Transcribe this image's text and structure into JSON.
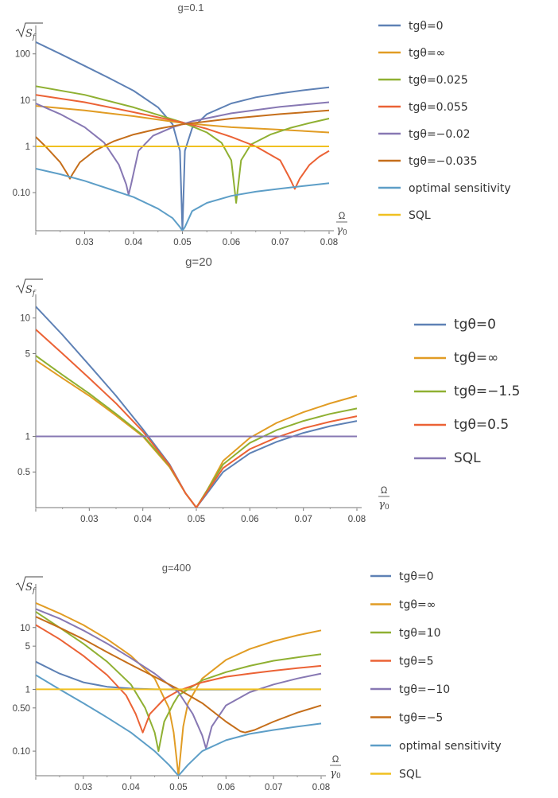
{
  "chart_data": [
    {
      "type": "line",
      "title": "g=0.1",
      "ylabel": "√S_f",
      "xlabel": "Ω / γ0",
      "yscale": "log",
      "xlim": [
        0.02,
        0.08
      ],
      "ylim": [
        0.015,
        300
      ],
      "xticks": [
        "0.03",
        "0.04",
        "0.05",
        "0.06",
        "0.07",
        "0.08"
      ],
      "yticks": [
        "100",
        "10",
        "1",
        "0.10"
      ],
      "legend": "right",
      "series": [
        {
          "name": "tgθ=0",
          "color": "#5e81b5",
          "x": [
            0.02,
            0.025,
            0.03,
            0.035,
            0.04,
            0.045,
            0.048,
            0.0495,
            0.05,
            0.0505,
            0.052,
            0.055,
            0.06,
            0.065,
            0.07,
            0.075,
            0.08
          ],
          "y": [
            180,
            100,
            55,
            30,
            16,
            7,
            3,
            0.8,
            0.015,
            0.8,
            2.5,
            5,
            8.5,
            11.5,
            14,
            16.5,
            19
          ]
        },
        {
          "name": "tgθ=∞",
          "color": "#e19c24",
          "x": [
            0.02,
            0.03,
            0.04,
            0.05,
            0.06,
            0.07,
            0.08
          ],
          "y": [
            7.5,
            6,
            4.5,
            3.2,
            2.6,
            2.3,
            2.0
          ]
        },
        {
          "name": "tgθ=0.025",
          "color": "#8fb032",
          "x": [
            0.02,
            0.03,
            0.04,
            0.05,
            0.055,
            0.058,
            0.06,
            0.061,
            0.062,
            0.064,
            0.068,
            0.072,
            0.076,
            0.08
          ],
          "y": [
            20,
            13,
            7,
            3.3,
            2,
            1.2,
            0.5,
            0.06,
            0.5,
            1.1,
            1.8,
            2.5,
            3.2,
            4
          ]
        },
        {
          "name": "tgθ=0.055",
          "color": "#eb6235",
          "x": [
            0.02,
            0.03,
            0.04,
            0.05,
            0.055,
            0.06,
            0.065,
            0.07,
            0.072,
            0.073,
            0.074,
            0.076,
            0.078,
            0.08
          ],
          "y": [
            13,
            9,
            5.5,
            3.3,
            2.4,
            1.6,
            1.0,
            0.5,
            0.2,
            0.12,
            0.2,
            0.4,
            0.6,
            0.8
          ]
        },
        {
          "name": "tgθ=−0.02",
          "color": "#8778b3",
          "x": [
            0.02,
            0.025,
            0.03,
            0.034,
            0.037,
            0.0385,
            0.039,
            0.0395,
            0.041,
            0.044,
            0.048,
            0.052,
            0.06,
            0.07,
            0.08
          ],
          "y": [
            8.5,
            5,
            2.6,
            1.2,
            0.4,
            0.15,
            0.09,
            0.15,
            0.8,
            1.7,
            2.6,
            3.5,
            5.2,
            7.2,
            9
          ]
        },
        {
          "name": "tgθ=−0.035",
          "color": "#c56e1a",
          "x": [
            0.02,
            0.022,
            0.025,
            0.0265,
            0.027,
            0.0275,
            0.029,
            0.032,
            0.036,
            0.04,
            0.045,
            0.05,
            0.06,
            0.07,
            0.08
          ],
          "y": [
            1.6,
            1.0,
            0.45,
            0.25,
            0.2,
            0.25,
            0.45,
            0.8,
            1.3,
            1.8,
            2.4,
            3.0,
            4.0,
            5.0,
            6
          ]
        },
        {
          "name": "optimal sensitivity",
          "color": "#5d9ec7",
          "x": [
            0.02,
            0.025,
            0.03,
            0.035,
            0.04,
            0.045,
            0.048,
            0.0495,
            0.05,
            0.0505,
            0.052,
            0.055,
            0.06,
            0.065,
            0.07,
            0.075,
            0.08
          ],
          "y": [
            0.33,
            0.25,
            0.18,
            0.12,
            0.08,
            0.045,
            0.028,
            0.018,
            0.015,
            0.018,
            0.04,
            0.06,
            0.085,
            0.105,
            0.122,
            0.14,
            0.16
          ]
        },
        {
          "name": "SQL",
          "color": "#f0c020",
          "x": [
            0.02,
            0.08
          ],
          "y": [
            1,
            1
          ]
        }
      ]
    },
    {
      "type": "line",
      "title": "g=20",
      "ylabel": "√S_f",
      "xlabel": "Ω / γ0",
      "yscale": "log",
      "xlim": [
        0.02,
        0.08
      ],
      "ylim": [
        0.25,
        14
      ],
      "xticks": [
        "0.03",
        "0.04",
        "0.05",
        "0.06",
        "0.07",
        "0.08"
      ],
      "yticks": [
        "10",
        "5",
        "1",
        "0.5"
      ],
      "legend": "right",
      "series": [
        {
          "name": "tgθ=0",
          "color": "#5e81b5",
          "x": [
            0.02,
            0.025,
            0.03,
            0.035,
            0.04,
            0.045,
            0.048,
            0.05,
            0.052,
            0.055,
            0.06,
            0.065,
            0.07,
            0.075,
            0.08
          ],
          "y": [
            12.5,
            7.2,
            4.0,
            2.2,
            1.15,
            0.58,
            0.33,
            0.25,
            0.33,
            0.5,
            0.72,
            0.9,
            1.07,
            1.22,
            1.35
          ]
        },
        {
          "name": "tgθ=∞",
          "color": "#e19c24",
          "x": [
            0.02,
            0.025,
            0.03,
            0.035,
            0.04,
            0.045,
            0.048,
            0.05,
            0.052,
            0.055,
            0.06,
            0.065,
            0.07,
            0.075,
            0.08
          ],
          "y": [
            4.4,
            3.1,
            2.2,
            1.5,
            1.0,
            0.55,
            0.33,
            0.25,
            0.35,
            0.62,
            0.97,
            1.3,
            1.6,
            1.9,
            2.2
          ]
        },
        {
          "name": "tgθ=−1.5",
          "color": "#8fb032",
          "x": [
            0.02,
            0.025,
            0.03,
            0.035,
            0.04,
            0.045,
            0.048,
            0.05,
            0.052,
            0.055,
            0.06,
            0.065,
            0.07,
            0.075,
            0.08
          ],
          "y": [
            4.8,
            3.3,
            2.3,
            1.55,
            1.02,
            0.56,
            0.33,
            0.25,
            0.35,
            0.58,
            0.88,
            1.13,
            1.35,
            1.55,
            1.72
          ]
        },
        {
          "name": "tgθ=0.5",
          "color": "#eb6235",
          "x": [
            0.02,
            0.025,
            0.03,
            0.035,
            0.04,
            0.045,
            0.048,
            0.05,
            0.052,
            0.055,
            0.06,
            0.065,
            0.07,
            0.075,
            0.08
          ],
          "y": [
            8.0,
            5.0,
            3.1,
            1.9,
            1.1,
            0.57,
            0.33,
            0.25,
            0.34,
            0.54,
            0.78,
            0.98,
            1.17,
            1.33,
            1.48
          ]
        },
        {
          "name": "SQL",
          "color": "#8778b3",
          "x": [
            0.02,
            0.08
          ],
          "y": [
            1,
            1
          ]
        }
      ]
    },
    {
      "type": "line",
      "title": "g=400",
      "ylabel": "√S_f",
      "xlabel": "Ω / γ0",
      "yscale": "log",
      "xlim": [
        0.02,
        0.08
      ],
      "ylim": [
        0.04,
        40
      ],
      "xticks": [
        "0.03",
        "0.04",
        "0.05",
        "0.06",
        "0.07",
        "0.08"
      ],
      "yticks": [
        "10",
        "5",
        "1",
        "0.50",
        "0.10"
      ],
      "legend": "right",
      "series": [
        {
          "name": "tgθ=0",
          "color": "#5e81b5",
          "x": [
            0.02,
            0.025,
            0.03,
            0.035,
            0.04,
            0.045,
            0.05,
            0.06,
            0.07,
            0.08
          ],
          "y": [
            2.8,
            1.8,
            1.3,
            1.1,
            1.03,
            1.0,
            0.99,
            0.99,
            1.0,
            1.0
          ]
        },
        {
          "name": "tgθ=∞",
          "color": "#e19c24",
          "x": [
            0.02,
            0.025,
            0.03,
            0.035,
            0.04,
            0.045,
            0.048,
            0.049,
            0.05,
            0.051,
            0.052,
            0.055,
            0.06,
            0.065,
            0.07,
            0.075,
            0.08
          ],
          "y": [
            25,
            17,
            11,
            6.5,
            3.5,
            1.5,
            0.5,
            0.2,
            0.04,
            0.25,
            0.6,
            1.5,
            3.0,
            4.5,
            6.0,
            7.5,
            9
          ]
        },
        {
          "name": "tgθ=10",
          "color": "#8fb032",
          "x": [
            0.02,
            0.025,
            0.03,
            0.035,
            0.04,
            0.043,
            0.045,
            0.0458,
            0.047,
            0.049,
            0.05,
            0.055,
            0.06,
            0.065,
            0.07,
            0.075,
            0.08
          ],
          "y": [
            18,
            10,
            5.5,
            2.8,
            1.2,
            0.5,
            0.2,
            0.1,
            0.3,
            0.6,
            0.8,
            1.4,
            1.9,
            2.4,
            2.9,
            3.3,
            3.7
          ]
        },
        {
          "name": "tgθ=5",
          "color": "#eb6235",
          "x": [
            0.02,
            0.025,
            0.03,
            0.035,
            0.039,
            0.041,
            0.0425,
            0.044,
            0.047,
            0.05,
            0.055,
            0.06,
            0.065,
            0.07,
            0.075,
            0.08
          ],
          "y": [
            11,
            6.5,
            3.5,
            1.7,
            0.8,
            0.4,
            0.2,
            0.4,
            0.7,
            0.95,
            1.3,
            1.6,
            1.8,
            2.0,
            2.2,
            2.4
          ]
        },
        {
          "name": "tgθ=−10",
          "color": "#8778b3",
          "x": [
            0.02,
            0.025,
            0.03,
            0.035,
            0.04,
            0.045,
            0.05,
            0.053,
            0.055,
            0.0558,
            0.057,
            0.06,
            0.065,
            0.07,
            0.075,
            0.08
          ],
          "y": [
            20,
            14,
            9,
            5.5,
            3.2,
            1.8,
            0.9,
            0.4,
            0.18,
            0.11,
            0.25,
            0.55,
            0.9,
            1.2,
            1.5,
            1.8
          ]
        },
        {
          "name": "tgθ=−5",
          "color": "#c56e1a",
          "x": [
            0.02,
            0.025,
            0.03,
            0.035,
            0.04,
            0.045,
            0.05,
            0.055,
            0.06,
            0.063,
            0.064,
            0.066,
            0.07,
            0.075,
            0.08
          ],
          "y": [
            15,
            10,
            6.5,
            4.0,
            2.5,
            1.6,
            1.0,
            0.6,
            0.3,
            0.21,
            0.2,
            0.22,
            0.3,
            0.42,
            0.55
          ]
        },
        {
          "name": "optimal sensitivity",
          "color": "#5d9ec7",
          "x": [
            0.02,
            0.025,
            0.03,
            0.035,
            0.04,
            0.045,
            0.048,
            0.05,
            0.052,
            0.055,
            0.06,
            0.065,
            0.07,
            0.075,
            0.08
          ],
          "y": [
            1.7,
            1.0,
            0.6,
            0.35,
            0.2,
            0.1,
            0.06,
            0.04,
            0.06,
            0.1,
            0.15,
            0.19,
            0.22,
            0.25,
            0.28
          ]
        },
        {
          "name": "SQL",
          "color": "#f0c020",
          "x": [
            0.02,
            0.08
          ],
          "y": [
            1,
            1
          ]
        }
      ]
    }
  ]
}
